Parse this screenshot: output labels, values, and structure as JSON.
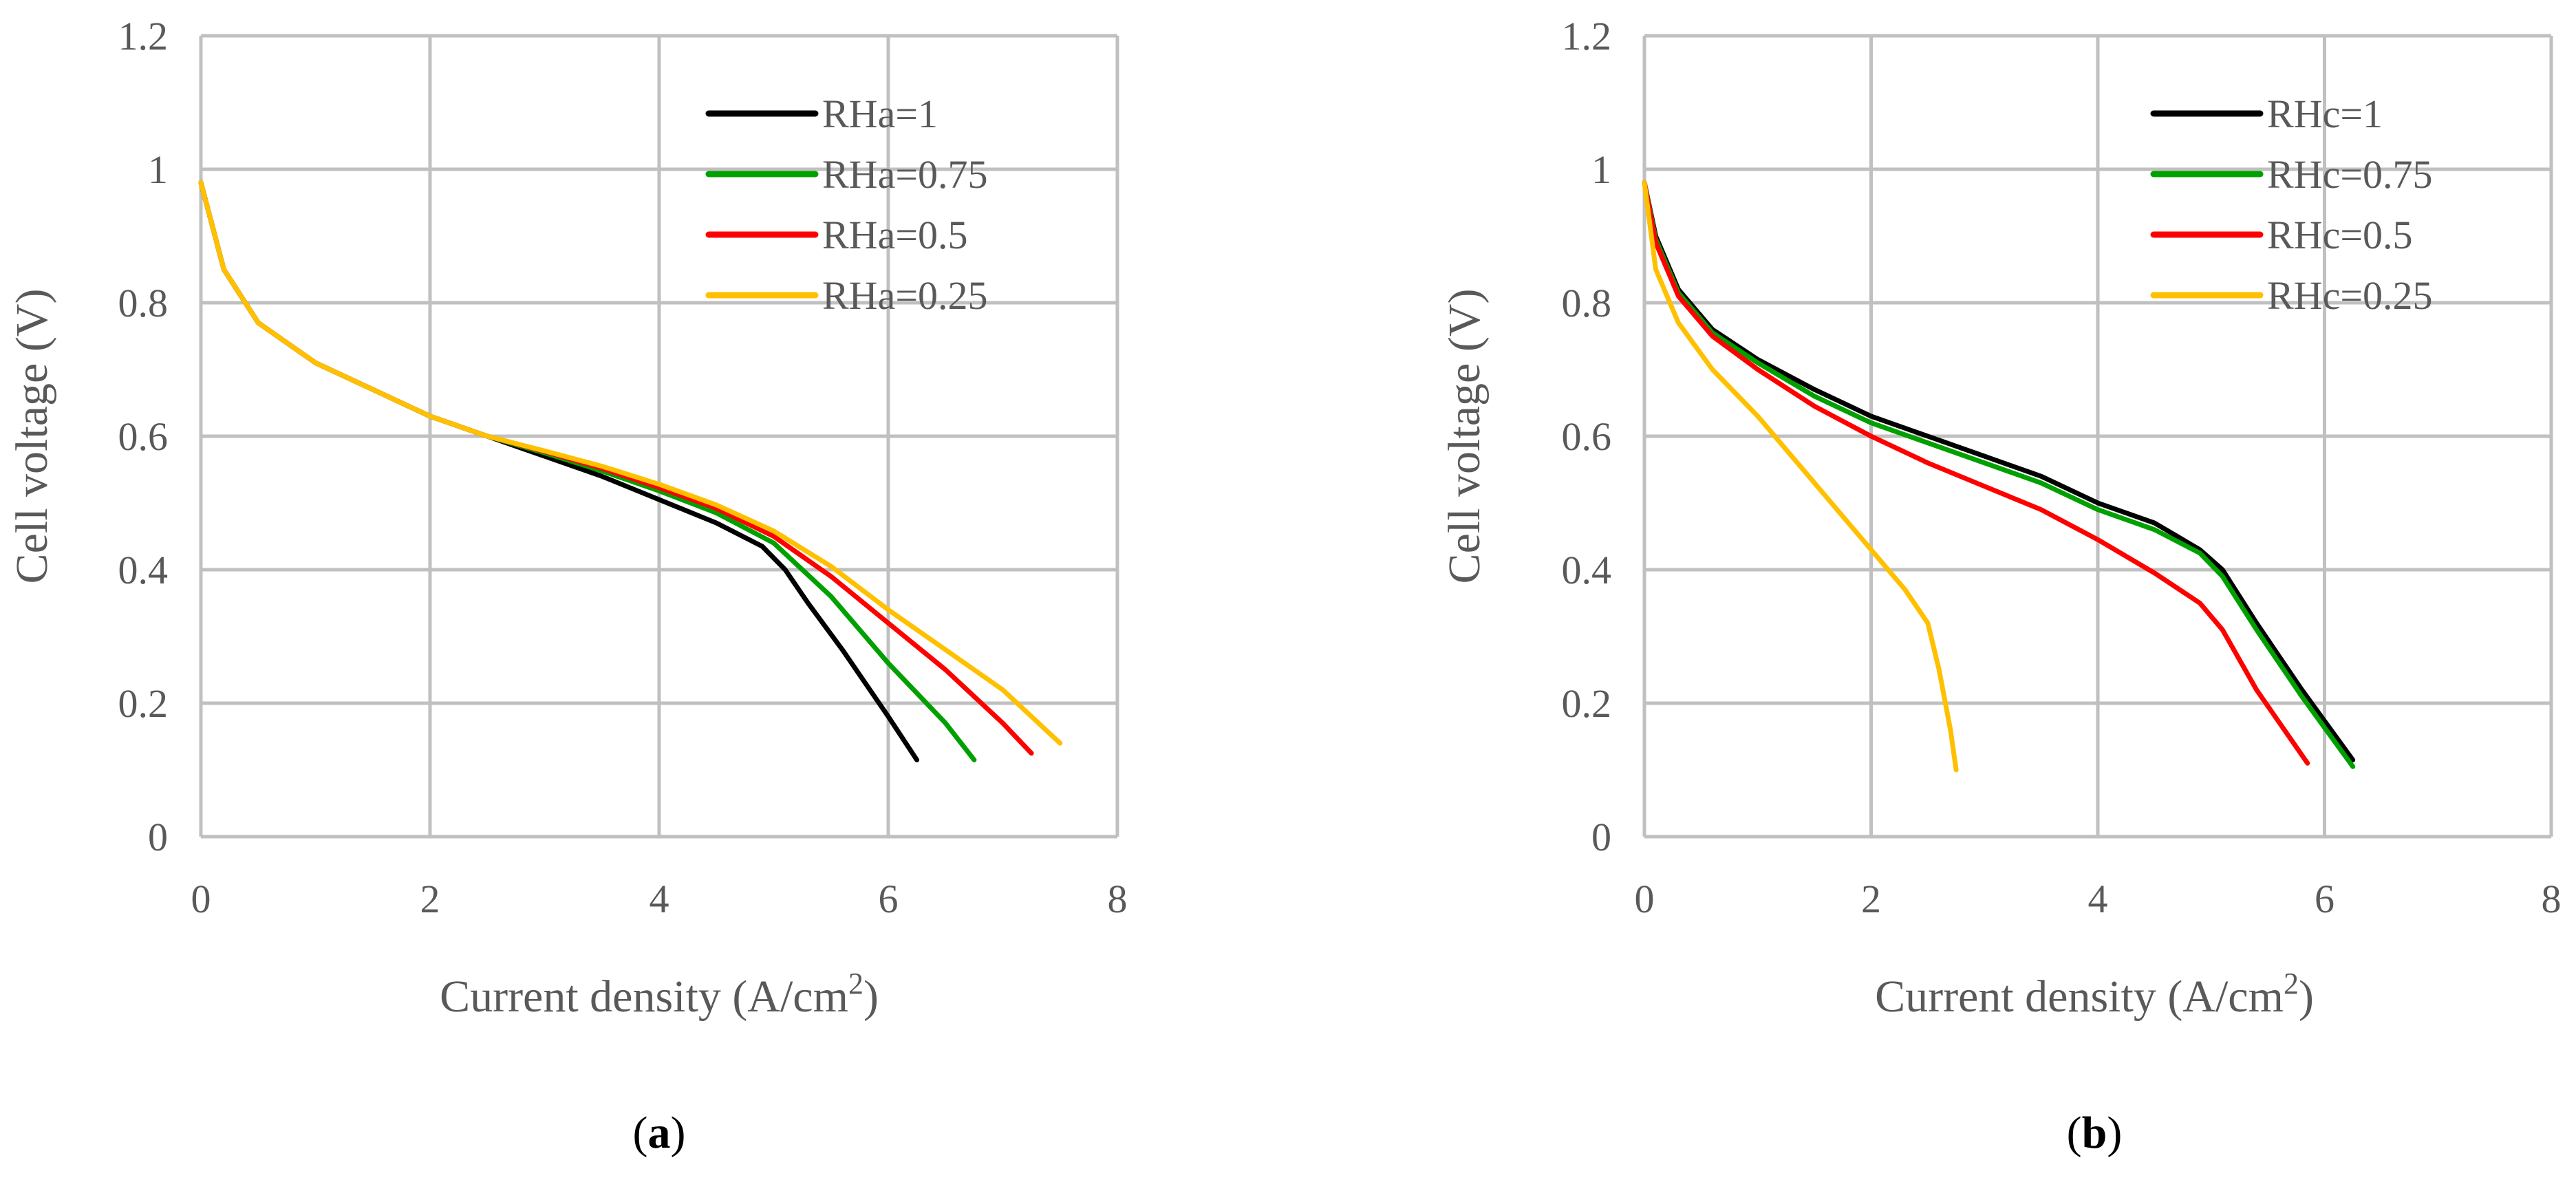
{
  "chart_data": [
    {
      "type": "line",
      "panel_label": "a",
      "xlabel": "Current density (A/cm",
      "xlabel_sup": "2",
      "xlabel_end": ")",
      "ylabel": "Cell voltage (V)",
      "xlim": [
        0,
        8
      ],
      "ylim": [
        0,
        1.2
      ],
      "xticks": [
        "0",
        "2",
        "4",
        "6",
        "8"
      ],
      "yticks": [
        "0",
        "0.2",
        "0.4",
        "0.6",
        "0.8",
        "1",
        "1.2"
      ],
      "grid": true,
      "legend_position": "top-right",
      "series": [
        {
          "name": "RHa=1",
          "color": "#000000",
          "x": [
            0,
            0.2,
            0.5,
            1,
            1.5,
            2,
            2.5,
            3,
            3.5,
            4,
            4.5,
            4.9,
            5.1,
            5.3,
            5.6,
            6.0,
            6.25
          ],
          "y": [
            0.98,
            0.85,
            0.77,
            0.71,
            0.67,
            0.63,
            0.6,
            0.57,
            0.54,
            0.505,
            0.47,
            0.435,
            0.4,
            0.35,
            0.28,
            0.18,
            0.115
          ]
        },
        {
          "name": "RHa=0.75",
          "color": "#00a000",
          "x": [
            0,
            0.2,
            0.5,
            1,
            1.5,
            2,
            2.5,
            3,
            3.5,
            4,
            4.5,
            5.0,
            5.5,
            6.0,
            6.5,
            6.75
          ],
          "y": [
            0.98,
            0.85,
            0.77,
            0.71,
            0.67,
            0.63,
            0.6,
            0.575,
            0.548,
            0.518,
            0.485,
            0.44,
            0.36,
            0.26,
            0.17,
            0.115
          ]
        },
        {
          "name": "RHa=0.5",
          "color": "#ff0000",
          "x": [
            0,
            0.2,
            0.5,
            1,
            1.5,
            2,
            2.5,
            3,
            3.5,
            4,
            4.5,
            5.0,
            5.5,
            6.0,
            6.5,
            7.0,
            7.25
          ],
          "y": [
            0.98,
            0.85,
            0.77,
            0.71,
            0.67,
            0.63,
            0.6,
            0.577,
            0.552,
            0.523,
            0.492,
            0.45,
            0.39,
            0.32,
            0.25,
            0.17,
            0.125
          ]
        },
        {
          "name": "RHa=0.25",
          "color": "#ffc000",
          "x": [
            0,
            0.2,
            0.5,
            1,
            1.5,
            2,
            2.5,
            3,
            3.5,
            4,
            4.5,
            5.0,
            5.5,
            6.0,
            6.5,
            7.0,
            7.5
          ],
          "y": [
            0.98,
            0.85,
            0.77,
            0.71,
            0.67,
            0.63,
            0.6,
            0.578,
            0.555,
            0.528,
            0.497,
            0.458,
            0.405,
            0.34,
            0.28,
            0.22,
            0.14
          ]
        }
      ]
    },
    {
      "type": "line",
      "panel_label": "b",
      "xlabel": "Current density (A/cm",
      "xlabel_sup": "2",
      "xlabel_end": ")",
      "ylabel": "Cell voltage (V)",
      "xlim": [
        0,
        8
      ],
      "ylim": [
        0,
        1.2
      ],
      "xticks": [
        "0",
        "2",
        "4",
        "6",
        "8"
      ],
      "yticks": [
        "0",
        "0.2",
        "0.4",
        "0.6",
        "0.8",
        "1",
        "1.2"
      ],
      "grid": true,
      "legend_position": "top-right",
      "series": [
        {
          "name": "RHc=1",
          "color": "#000000",
          "x": [
            0,
            0.1,
            0.3,
            0.6,
            1,
            1.5,
            2,
            2.5,
            3,
            3.5,
            4,
            4.5,
            4.9,
            5.1,
            5.4,
            5.8,
            6.25
          ],
          "y": [
            0.98,
            0.9,
            0.82,
            0.76,
            0.715,
            0.67,
            0.63,
            0.6,
            0.57,
            0.54,
            0.5,
            0.47,
            0.43,
            0.4,
            0.32,
            0.22,
            0.115
          ]
        },
        {
          "name": "RHc=0.75",
          "color": "#00a000",
          "x": [
            0,
            0.1,
            0.3,
            0.6,
            1,
            1.5,
            2,
            2.5,
            3,
            3.5,
            4,
            4.5,
            4.9,
            5.1,
            5.4,
            5.8,
            6.25
          ],
          "y": [
            0.98,
            0.895,
            0.815,
            0.755,
            0.71,
            0.66,
            0.62,
            0.59,
            0.56,
            0.53,
            0.49,
            0.46,
            0.425,
            0.39,
            0.31,
            0.21,
            0.105
          ]
        },
        {
          "name": "RHc=0.5",
          "color": "#ff0000",
          "x": [
            0,
            0.1,
            0.3,
            0.6,
            1,
            1.5,
            2,
            2.5,
            3,
            3.5,
            4,
            4.5,
            4.9,
            5.1,
            5.4,
            5.85
          ],
          "y": [
            0.98,
            0.89,
            0.81,
            0.75,
            0.7,
            0.645,
            0.6,
            0.56,
            0.525,
            0.49,
            0.445,
            0.395,
            0.35,
            0.31,
            0.22,
            0.11
          ]
        },
        {
          "name": "RHc=0.25",
          "color": "#ffc000",
          "x": [
            0,
            0.1,
            0.3,
            0.6,
            1,
            1.5,
            2,
            2.3,
            2.5,
            2.6,
            2.7,
            2.75
          ],
          "y": [
            0.98,
            0.85,
            0.77,
            0.7,
            0.63,
            0.53,
            0.43,
            0.37,
            0.32,
            0.25,
            0.16,
            0.1
          ]
        }
      ]
    }
  ]
}
